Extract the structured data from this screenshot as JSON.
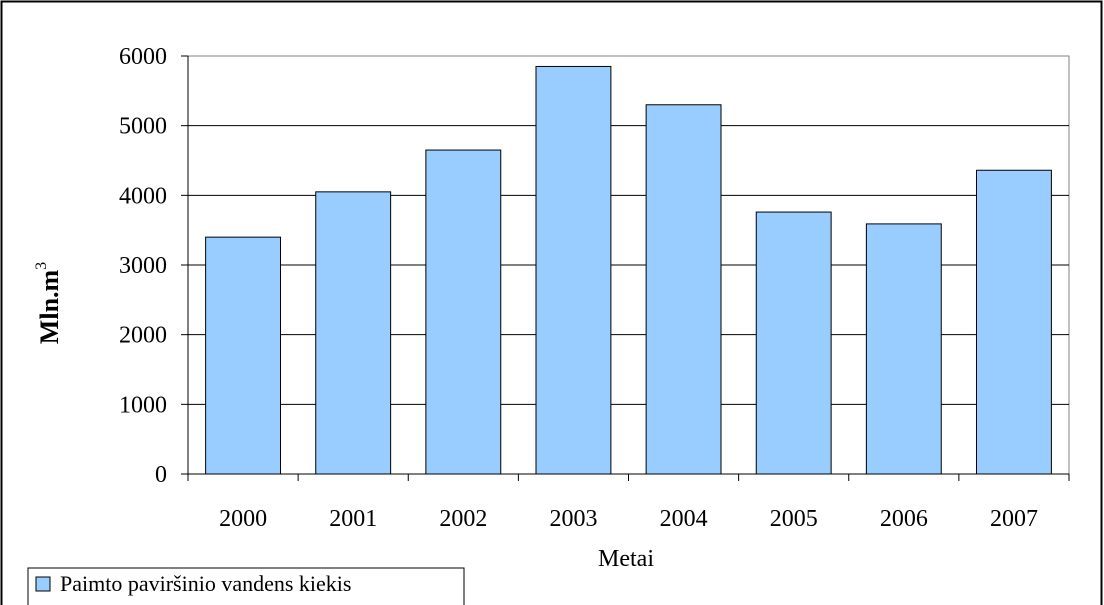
{
  "chart_data": {
    "type": "bar",
    "title": "",
    "categories": [
      "2000",
      "2001",
      "2002",
      "2003",
      "2004",
      "2005",
      "2006",
      "2007"
    ],
    "series": [
      {
        "name": "Paimto paviršinio vandens kiekis",
        "values": [
          3400,
          4050,
          4650,
          5850,
          5300,
          3760,
          3590,
          4360
        ],
        "color": "#99ccff"
      }
    ],
    "xlabel": "Metai",
    "ylabel": "Mln.m",
    "ylabel_superscript": "3",
    "ylim": [
      0,
      6000
    ],
    "yticks": [
      "0",
      "1000",
      "2000",
      "3000",
      "4000",
      "5000",
      "6000"
    ],
    "grid": true,
    "legend_position": "bottom-left"
  }
}
